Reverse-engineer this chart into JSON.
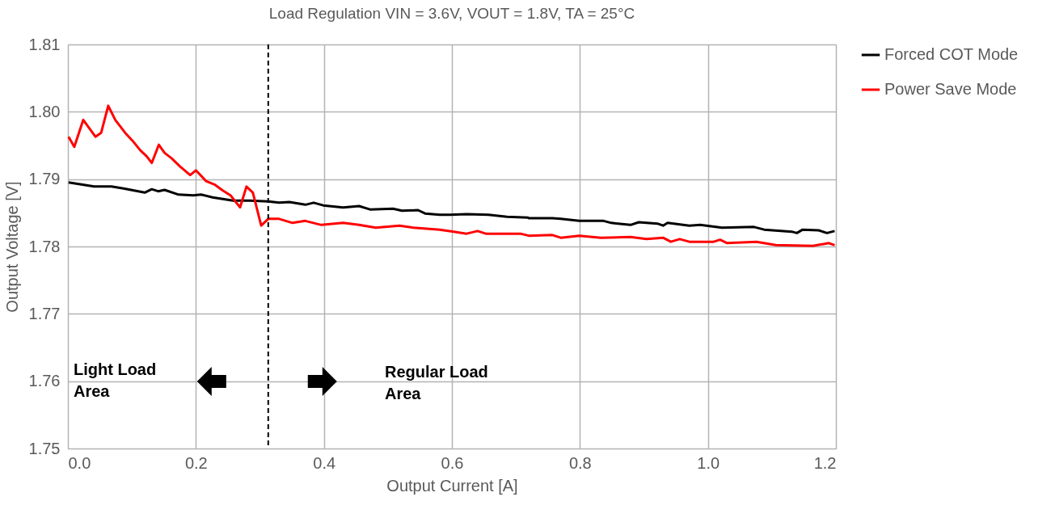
{
  "chart_data": {
    "type": "line",
    "title": "Load Regulation  VIN = 3.6V, VOUT = 1.8V, TA = 25°C",
    "xlabel": "Output Current [A]",
    "ylabel": "Output Voltage [V]",
    "xlim": [
      0,
      1.2
    ],
    "ylim": [
      1.75,
      1.81
    ],
    "xticks": [
      {
        "value": 0,
        "label": "0.0"
      },
      0.2,
      0.4,
      0.6,
      0.8,
      {
        "value": 1,
        "label": "1.0"
      },
      1.2
    ],
    "yticks": [
      1.75,
      1.76,
      1.77,
      1.78,
      1.79,
      {
        "value": 1.8,
        "label": "1.80"
      },
      1.81
    ],
    "grid": true,
    "legend": "right",
    "line_style": "solid",
    "marker": "none",
    "ref_lines": [
      {
        "axis": "x",
        "value": 0.313,
        "label": null,
        "color": "#000000",
        "line_style": "dashed"
      }
    ],
    "annotations": [
      "Light Load\nArea",
      "Regular Load\nArea"
    ],
    "series": [
      {
        "name": "Forced COT Mode",
        "color": "#000000",
        "x": [
          0.001,
          0.041,
          0.068,
          0.087,
          0.12,
          0.131,
          0.141,
          0.151,
          0.173,
          0.196,
          0.208,
          0.226,
          0.258,
          0.284,
          0.313,
          0.33,
          0.346,
          0.371,
          0.384,
          0.399,
          0.43,
          0.455,
          0.472,
          0.508,
          0.522,
          0.547,
          0.558,
          0.581,
          0.597,
          0.623,
          0.657,
          0.686,
          0.719,
          0.72,
          0.757,
          0.77,
          0.799,
          0.837,
          0.849,
          0.879,
          0.892,
          0.921,
          0.93,
          0.937,
          0.971,
          0.988,
          1.022,
          1.072,
          1.088,
          1.131,
          1.139,
          1.148,
          1.173,
          1.186,
          1.198
        ],
        "values": [
          1.7895,
          1.7889,
          1.7889,
          1.7886,
          1.788,
          1.7885,
          1.7882,
          1.7884,
          1.7877,
          1.7876,
          1.7877,
          1.7873,
          1.7868,
          1.7868,
          1.7867,
          1.7865,
          1.7866,
          1.7862,
          1.7865,
          1.7861,
          1.7858,
          1.786,
          1.7855,
          1.7856,
          1.7853,
          1.7854,
          1.7849,
          1.7847,
          1.7847,
          1.7848,
          1.7847,
          1.7844,
          1.7843,
          1.7842,
          1.7842,
          1.7841,
          1.7838,
          1.7838,
          1.7835,
          1.7832,
          1.7836,
          1.7834,
          1.7831,
          1.7835,
          1.7831,
          1.7832,
          1.7828,
          1.7829,
          1.7825,
          1.7822,
          1.782,
          1.7825,
          1.7824,
          1.782,
          1.7823
        ]
      },
      {
        "name": "Power Save Mode",
        "color": "#ff0000",
        "x": [
          0.001,
          0.01,
          0.024,
          0.043,
          0.052,
          0.063,
          0.074,
          0.091,
          0.101,
          0.113,
          0.123,
          0.131,
          0.142,
          0.151,
          0.162,
          0.175,
          0.191,
          0.2,
          0.216,
          0.229,
          0.242,
          0.254,
          0.269,
          0.279,
          0.289,
          0.302,
          0.313,
          0.33,
          0.351,
          0.371,
          0.396,
          0.43,
          0.455,
          0.481,
          0.518,
          0.54,
          0.581,
          0.603,
          0.623,
          0.64,
          0.653,
          0.707,
          0.72,
          0.757,
          0.77,
          0.799,
          0.833,
          0.879,
          0.904,
          0.93,
          0.942,
          0.956,
          0.971,
          1.009,
          1.019,
          1.03,
          1.076,
          1.106,
          1.164,
          1.189,
          1.198
        ],
        "values": [
          1.7963,
          1.7948,
          1.7988,
          1.7963,
          1.7969,
          1.8009,
          1.7988,
          1.7967,
          1.7957,
          1.7943,
          1.7934,
          1.7924,
          1.7951,
          1.7939,
          1.7931,
          1.7919,
          1.7906,
          1.7913,
          1.7897,
          1.7892,
          1.7883,
          1.7876,
          1.7858,
          1.7889,
          1.788,
          1.7831,
          1.7841,
          1.7841,
          1.7835,
          1.7838,
          1.7832,
          1.7835,
          1.7832,
          1.7828,
          1.7831,
          1.7828,
          1.7825,
          1.7822,
          1.7819,
          1.7823,
          1.7819,
          1.7819,
          1.7816,
          1.7817,
          1.7813,
          1.7816,
          1.7813,
          1.7814,
          1.7811,
          1.7813,
          1.7807,
          1.7811,
          1.7807,
          1.7807,
          1.781,
          1.7805,
          1.7807,
          1.7802,
          1.7801,
          1.7805,
          1.7802
        ]
      }
    ]
  }
}
